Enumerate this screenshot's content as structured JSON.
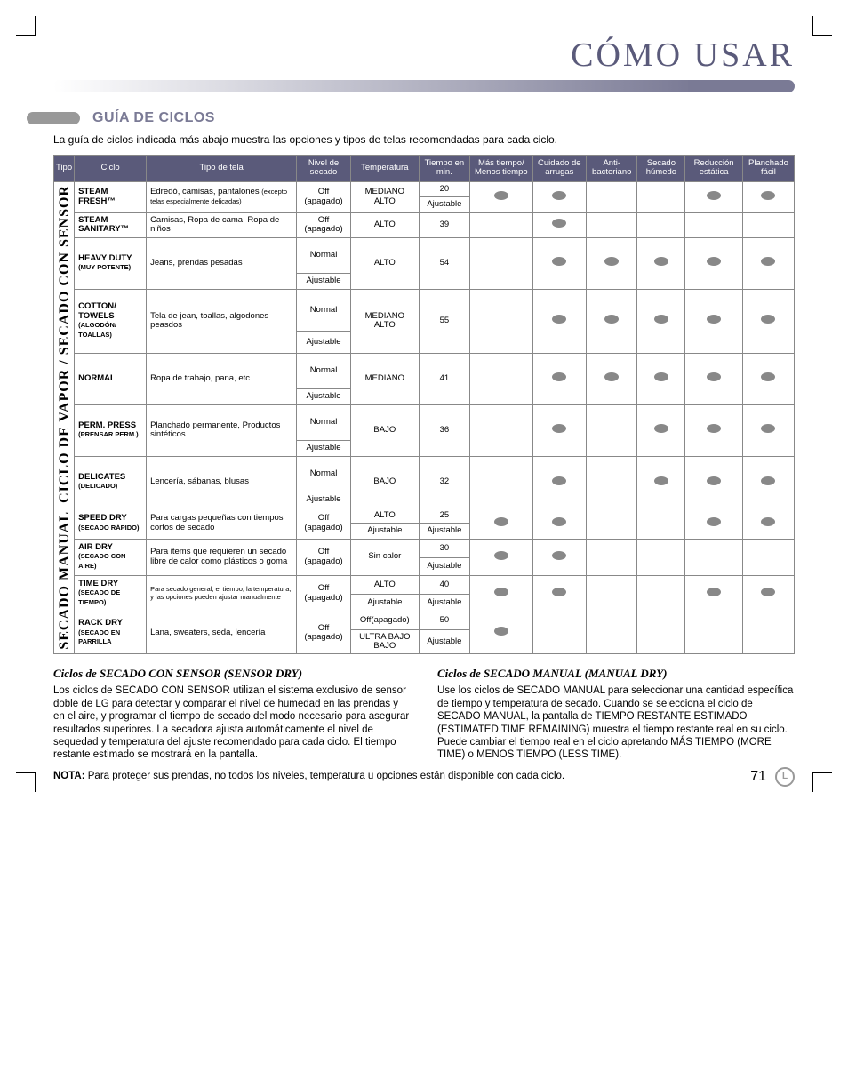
{
  "page": {
    "title": "CÓMO USAR",
    "section": "GUÍA DE CICLOS",
    "intro": "La guía de ciclos indicada más abajo muestra las opciones y tipos de telas recomendadas para cada ciclo.",
    "page_number": "71"
  },
  "table": {
    "headers": {
      "tipo": "Tipo",
      "ciclo": "Ciclo",
      "tipo_tela": "Tipo de tela",
      "nivel_secado": "Nivel de secado",
      "temperatura": "Temperatura",
      "tiempo": "Tiempo en min.",
      "mas_tiempo": "Más tiempo/ Menos tiempo",
      "cuidado": "Cuidado de arrugas",
      "anti": "Anti-bacteriano",
      "secado_humedo": "Secado húmedo",
      "reduccion": "Reducción estática",
      "planchado": "Planchado fácil"
    },
    "cat1": "CICLO DE VAPOR / SECADO CON SENSOR",
    "cat2": "SECADO MANUAL",
    "rows": {
      "r1": {
        "ciclo": "STEAM FRESH™",
        "tela": "Edredó, camisas, pantalones",
        "tela2": "(excepto telas especialmente delicadas)",
        "nivel1": "Off (apagado)",
        "temp": "MEDIANO ALTO",
        "t1": "20",
        "t2": "Ajustable"
      },
      "r2": {
        "ciclo": "STEAM SANITARY™",
        "tela": "Camisas, Ropa de cama, Ropa de niños",
        "nivel1": "Off (apagado)",
        "temp": "ALTO",
        "t1": "39"
      },
      "r3": {
        "ciclo": "HEAVY DUTY",
        "sub": "(MUY POTENTE)",
        "tela": "Jeans, prendas pesadas",
        "nivel1": "Normal",
        "nivel2": "Ajustable",
        "temp": "ALTO",
        "t1": "54"
      },
      "r4": {
        "ciclo": "COTTON/ TOWELS",
        "sub": "(ALGODÓN/ TOALLAS)",
        "tela": "Tela de jean, toallas, algodones peasdos",
        "nivel1": "Normal",
        "nivel2": "Ajustable",
        "temp": "MEDIANO ALTO",
        "t1": "55"
      },
      "r5": {
        "ciclo": "NORMAL",
        "tela": "Ropa de trabajo, pana, etc.",
        "nivel1": "Normal",
        "nivel2": "Ajustable",
        "temp": "MEDIANO",
        "t1": "41"
      },
      "r6": {
        "ciclo": "PERM. PRESS",
        "sub": "(PRENSAR PERM.)",
        "tela": "Planchado permanente, Productos sintéticos",
        "nivel1": "Normal",
        "nivel2": "Ajustable",
        "temp": "BAJO",
        "t1": "36"
      },
      "r7": {
        "ciclo": "DELICATES",
        "sub": "(DELICADO)",
        "tela": "Lencería, sábanas, blusas",
        "nivel1": "Normal",
        "nivel2": "Ajustable",
        "temp": "BAJO",
        "t1": "32"
      },
      "r8": {
        "ciclo": "SPEED DRY",
        "sub": "(SECADO RÁPIDO)",
        "tela": "Para cargas pequeñas con tiempos cortos de secado",
        "nivel1": "Off (apagado)",
        "temp1": "ALTO",
        "temp2": "Ajustable",
        "t1": "25",
        "t2": "Ajustable"
      },
      "r9": {
        "ciclo": "AIR DRY",
        "sub": "(SECADO CON AIRE)",
        "tela": "Para items que requieren un secado libre de calor como plásticos o goma",
        "nivel1": "Off (apagado)",
        "temp": "Sin calor",
        "t1": "30",
        "t2": "Ajustable"
      },
      "r10": {
        "ciclo": "TIME DRY",
        "sub": "(SECADO DE TIEMPO)",
        "tela": "Para secado general; el tiempo, la temperatura, y las opciones pueden ajustar manualmente",
        "nivel1": "Off (apagado)",
        "temp1": "ALTO",
        "temp2": "Ajustable",
        "t1": "40",
        "t2": "Ajustable"
      },
      "r11": {
        "ciclo": "RACK DRY",
        "sub": "(SECADO EN PARRILLA",
        "tela": "Lana, sweaters, seda, lencería",
        "nivel1": "Off (apagado)",
        "temp1": "Off(apagado)",
        "temp2": "ULTRA BAJO BAJO",
        "t1": "50",
        "t2": "Ajustable"
      }
    }
  },
  "text": {
    "sensor_title": "Ciclos de SECADO CON SENSOR (SENSOR DRY)",
    "sensor_body": "Los ciclos de SECADO CON SENSOR utilizan el sistema exclusivo de sensor doble de LG para detectar y comparar el nivel de humedad en las prendas y en el aire, y programar el tiempo de secado del modo necesario para asegurar resultados superiores. La secadora ajusta automáticamente el nivel de sequedad y temperatura del ajuste recomendado para cada ciclo. El tiempo restante estimado se mostrará en la pantalla.",
    "manual_title": "Ciclos de SECADO MANUAL (MANUAL DRY)",
    "manual_body": "Use los ciclos de SECADO MANUAL para seleccionar una cantidad específica de tiempo y temperatura de secado. Cuando se selecciona el ciclo de SECADO MANUAL, la pantalla de TIEMPO RESTANTE ESTIMADO (ESTIMATED TIME REMAINING) muestra el tiempo restante real en su ciclo. Puede cambiar el tiempo real en el ciclo apretando MÁS TIEMPO (MORE TIME) o MENOS TIEMPO (LESS TIME).",
    "note_label": "NOTA:",
    "note_body": " Para proteger sus prendas, no todos los niveles, temperatura u opciones están disponible con cada ciclo."
  },
  "style": {
    "header_bg": "#5a5a7a",
    "header_color": "#ffffff",
    "border_color": "#888888",
    "dot_color": "#888888",
    "title_color": "#5a5a7a",
    "cell_fontsize": 9.5,
    "header_fontsize": 9.5,
    "body_fontsize": 11.5
  }
}
